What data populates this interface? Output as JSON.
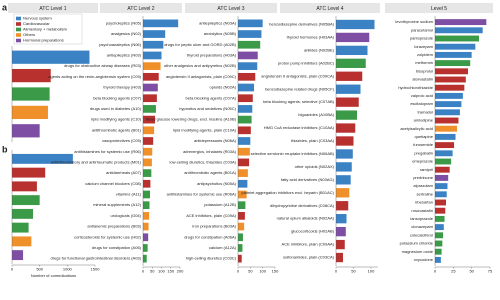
{
  "chart_data": [
    {
      "type": "barh",
      "panel": "a",
      "title": "ATC Level 1",
      "categories": [
        "Nervous system",
        "Cardiovascular",
        "Alimentary + metabolism",
        "Others",
        "Hormonal preparations"
      ],
      "values": [
        1400,
        700,
        680,
        650,
        500
      ],
      "colors": [
        "#3b82c4",
        "#b8312f",
        "#3a9a48",
        "#f0902a",
        "#7d4ea3"
      ],
      "xlim": [
        0,
        1500
      ],
      "legend": "top-left"
    },
    {
      "type": "barh",
      "panel": "b",
      "values": [
        1100,
        600,
        450,
        500,
        380,
        300,
        350,
        200
      ],
      "colors": [
        "#3b82c4",
        "#b8312f",
        "#b8312f",
        "#3a9a48",
        "#3a9a48",
        "#3a9a48",
        "#f0902a",
        "#7d4ea3"
      ],
      "xlim": [
        0,
        1500
      ],
      "xticks": [
        0,
        500,
        1000,
        1500
      ],
      "xlabel": "Number of comedications"
    },
    {
      "type": "barh",
      "title": "ATC Level 2",
      "categories": [
        "psycholeptics (N05)",
        "analgesics (N02)",
        "psychoanaleptics (N06)",
        "antiepileptics (N03)",
        "drugs for obstructive airway diseases (R03)",
        "agents acting on the renin-angiotensin system (C09)",
        "thyroid therapy (H03)",
        "beta blocking agents (C07)",
        "drugs used in diabetes (A10)",
        "lipid modifying agents (C10)",
        "antithrombotic agents (B01)",
        "vasoprotectives (C05)",
        "antihistamines for systemic use (R06)",
        "antiinflammatory and antirheumatic products (M01)",
        "antidiarrheals (A07)",
        "calcium channel blockers (C08)",
        "vitamins (A11)",
        "mineral supplements (A12)",
        "urologicals (G04)",
        "antianemic preparations (B03)",
        "corticosteroids for systemic use (H02)",
        "drugs for constipation (A06)",
        "drugs for functional gastrointestinal disorders (A03)"
      ],
      "values": [
        190,
        120,
        110,
        100,
        95,
        85,
        80,
        75,
        70,
        65,
        60,
        55,
        50,
        48,
        45,
        40,
        38,
        35,
        33,
        30,
        28,
        25,
        20
      ],
      "colors": [
        "#3b82c4",
        "#3b82c4",
        "#3b82c4",
        "#3b82c4",
        "#f0902a",
        "#b8312f",
        "#7d4ea3",
        "#b8312f",
        "#3a9a48",
        "#b8312f",
        "#f0902a",
        "#b8312f",
        "#f0902a",
        "#f0902a",
        "#3a9a48",
        "#b8312f",
        "#3a9a48",
        "#3a9a48",
        "#f0902a",
        "#f0902a",
        "#7d4ea3",
        "#3a9a48",
        "#3a9a48"
      ],
      "xlim": [
        0,
        200
      ],
      "xticks": [
        0,
        50,
        100,
        150,
        200
      ]
    },
    {
      "type": "barh",
      "title": "ATC Level 3",
      "categories": [
        "antiepileptics (N03A)",
        "anxiolytics (N05B)",
        "drugs for peptic ulcer and GORD (A02B)",
        "thyroid preparations (H03A)",
        "other analgesics and antipyretics (N02B)",
        "angiotensin II antagonists, plain (C09C)",
        "opioids (N02A)",
        "beta blocking agents (C07A)",
        "hypnotics and sedatives (N05C)",
        "blood glucose lowering drugs, excl. insulins (A10B)",
        "lipid modifying agents, plain (C10A)",
        "antidepressants (N06A)",
        "adrenergics, inhalants (R03A)",
        "low-ceiling diuretics, thiazides (C03A)",
        "antithrombotic agents (B01A)",
        "antipsychotics (N05A)",
        "antihistamines for systemic use (R06A)",
        "potassium (A12B)",
        "ACE inhibitors, plain (C09A)",
        "iron preparations (B03A)",
        "drugs for constipation (A06A)",
        "calcium (A12A)",
        "high-ceiling diuretics (C03C)"
      ],
      "values": [
        100,
        95,
        90,
        80,
        78,
        70,
        65,
        60,
        58,
        55,
        52,
        50,
        48,
        45,
        40,
        38,
        35,
        30,
        28,
        25,
        20,
        18,
        15
      ],
      "colors": [
        "#3b82c4",
        "#3b82c4",
        "#3a9a48",
        "#7d4ea3",
        "#3b82c4",
        "#b8312f",
        "#3b82c4",
        "#b8312f",
        "#3b82c4",
        "#3a9a48",
        "#b8312f",
        "#3b82c4",
        "#f0902a",
        "#b8312f",
        "#f0902a",
        "#3b82c4",
        "#f0902a",
        "#3a9a48",
        "#b8312f",
        "#f0902a",
        "#3a9a48",
        "#3a9a48",
        "#b8312f"
      ],
      "xlim": [
        0,
        150
      ],
      "xticks": [
        0,
        50,
        100,
        150
      ]
    },
    {
      "type": "barh",
      "title": "ATC Level 4",
      "categories": [
        "benzodiazepine derivatives (N05BA)",
        "thyroid hormones (H03AA)",
        "anilides (N02BE)",
        "proton pump inhibitors (A02BC)",
        "angiotensin II antagonists, plain (C09CA)",
        "benzodiazepine related drugs (N05CF)",
        "beta blocking agents, selective (C07AB)",
        "biguanides (A10BA)",
        "HMG CoA reductase inhibitors (C10AA)",
        "thiazides, plain (C03AA)",
        "selective serotonin reuptake inhibitors (N06AB)",
        "other opioids (N02AX)",
        "fatty acid derivatives (N03AG)",
        "platelet aggregation inhibitors excl. heparin (B01AC)",
        "dihydropyridine derivatives (C08CA)",
        "natural opium alkaloids (N02AA)",
        "glucocorticoids (H02AB)",
        "ACE inhibitors, plain (C09AA)",
        "sulfonamides, plain (C03CA)"
      ],
      "values": [
        110,
        95,
        90,
        85,
        75,
        70,
        65,
        60,
        55,
        50,
        48,
        45,
        42,
        38,
        35,
        30,
        28,
        25,
        20
      ],
      "colors": [
        "#3b82c4",
        "#7d4ea3",
        "#3b82c4",
        "#3a9a48",
        "#b8312f",
        "#3b82c4",
        "#b8312f",
        "#3a9a48",
        "#b8312f",
        "#b8312f",
        "#3b82c4",
        "#3b82c4",
        "#3b82c4",
        "#f0902a",
        "#b8312f",
        "#3b82c4",
        "#7d4ea3",
        "#b8312f",
        "#b8312f"
      ],
      "xlim": [
        0,
        120
      ],
      "xticks": [
        0,
        50,
        100
      ]
    },
    {
      "type": "barh",
      "title": "Level 5",
      "categories": [
        "levothyroxine sodium",
        "paracetamol",
        "pantoprazole",
        "lorazepam",
        "zolpidem",
        "metformin",
        "bisoprolol",
        "atorvastatin",
        "hydrochlorothiazide",
        "valproic acid",
        "escitalopram",
        "tramadol",
        "amlodipine",
        "acetylsalicylic acid",
        "quetiapine",
        "furosemide",
        "pregabalin",
        "omeprazole",
        "ramipril",
        "prednisone",
        "alprazolam",
        "sertraline",
        "irbesartan",
        "rosuvastatin",
        "lansoprazole",
        "clonazepam",
        "colecalciferol",
        "potassium chloride",
        "magnesium oxide",
        "oxycodone"
      ],
      "values": [
        70,
        65,
        60,
        55,
        50,
        48,
        45,
        42,
        40,
        38,
        36,
        34,
        32,
        30,
        28,
        26,
        24,
        22,
        20,
        18,
        17,
        16,
        15,
        14,
        13,
        12,
        11,
        10,
        9,
        8
      ],
      "colors": [
        "#7d4ea3",
        "#3b82c4",
        "#3a9a48",
        "#3b82c4",
        "#3b82c4",
        "#3a9a48",
        "#b8312f",
        "#b8312f",
        "#b8312f",
        "#3b82c4",
        "#3b82c4",
        "#3b82c4",
        "#b8312f",
        "#f0902a",
        "#3b82c4",
        "#b8312f",
        "#3b82c4",
        "#3a9a48",
        "#b8312f",
        "#7d4ea3",
        "#3b82c4",
        "#3b82c4",
        "#b8312f",
        "#b8312f",
        "#3a9a48",
        "#3b82c4",
        "#3a9a48",
        "#3a9a48",
        "#3a9a48",
        "#3b82c4"
      ],
      "xlim": [
        0,
        75
      ],
      "xticks": [
        0,
        25,
        50,
        75
      ]
    }
  ]
}
